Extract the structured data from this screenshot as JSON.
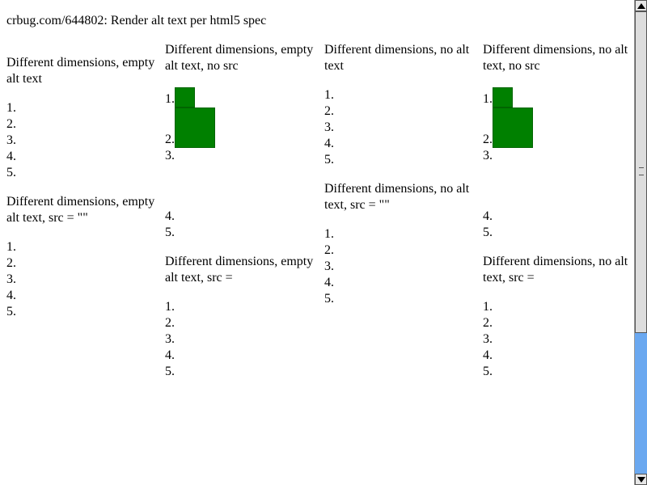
{
  "heading": "crbug.com/644802: Render alt text per html5 spec",
  "sections": {
    "empty_alt": {
      "title": "Different dimensions, empty alt text",
      "items": [
        "1.",
        "2.",
        "3.",
        "4.",
        "5."
      ]
    },
    "empty_alt_src_empty": {
      "title": "Different dimensions, empty alt text, src = \"\"",
      "items": [
        "1.",
        "2.",
        "3.",
        "4.",
        "5."
      ]
    },
    "empty_alt_no_src": {
      "title": "Different dimensions, empty alt text, no src",
      "items": [
        "1.",
        "2.",
        "3.",
        "4.",
        "5."
      ]
    },
    "empty_alt_src_eq": {
      "title": "Different dimensions, empty alt text, src =",
      "items": [
        "1.",
        "2.",
        "3.",
        "4.",
        "5."
      ]
    },
    "no_alt": {
      "title": "Different dimensions, no alt text",
      "items": [
        "1.",
        "2.",
        "3.",
        "4.",
        "5."
      ]
    },
    "no_alt_src_empty": {
      "title": "Different dimensions, no alt text, src = \"\"",
      "items": [
        "1.",
        "2.",
        "3.",
        "4.",
        "5."
      ]
    },
    "no_alt_no_src": {
      "title": "Different dimensions, no alt text, no src",
      "items": [
        "1.",
        "2.",
        "3.",
        "4.",
        "5."
      ]
    },
    "no_alt_src_eq": {
      "title": "Different dimensions, no alt text, src =",
      "items": [
        "1.",
        "2.",
        "3.",
        "4.",
        "5."
      ]
    }
  },
  "colors": {
    "image_fill": "#008000",
    "scrollbar_track": "#6aa8f0"
  }
}
